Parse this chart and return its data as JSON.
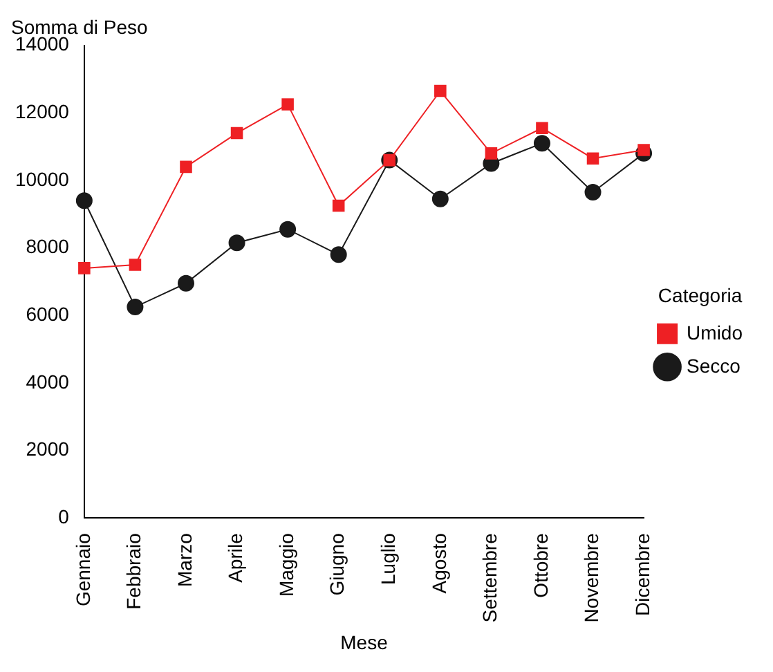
{
  "chart_data": {
    "type": "line",
    "title": "Somma di Peso",
    "xlabel": "Mese",
    "legend_title": "Categoria",
    "legend": "right",
    "grid": false,
    "categories": [
      "Gennaio",
      "Febbraio",
      "Marzo",
      "Aprile",
      "Maggio",
      "Giugno",
      "Luglio",
      "Agosto",
      "Settembre",
      "Ottobre",
      "Novembre",
      "Dicembre"
    ],
    "ylim": [
      0,
      14000
    ],
    "yticks": [
      0,
      2000,
      4000,
      6000,
      8000,
      10000,
      12000,
      14000
    ],
    "series": [
      {
        "name": "Secco",
        "color": "#1a1a1a",
        "marker": "circle",
        "values": [
          9400,
          6250,
          6950,
          8150,
          8550,
          7800,
          10600,
          9450,
          10500,
          11100,
          9650,
          10800
        ]
      },
      {
        "name": "Umido",
        "color": "#ee2024",
        "marker": "square",
        "values": [
          7400,
          7500,
          10400,
          11400,
          12250,
          9250,
          10600,
          12650,
          10800,
          11550,
          10650,
          10900
        ]
      }
    ]
  }
}
